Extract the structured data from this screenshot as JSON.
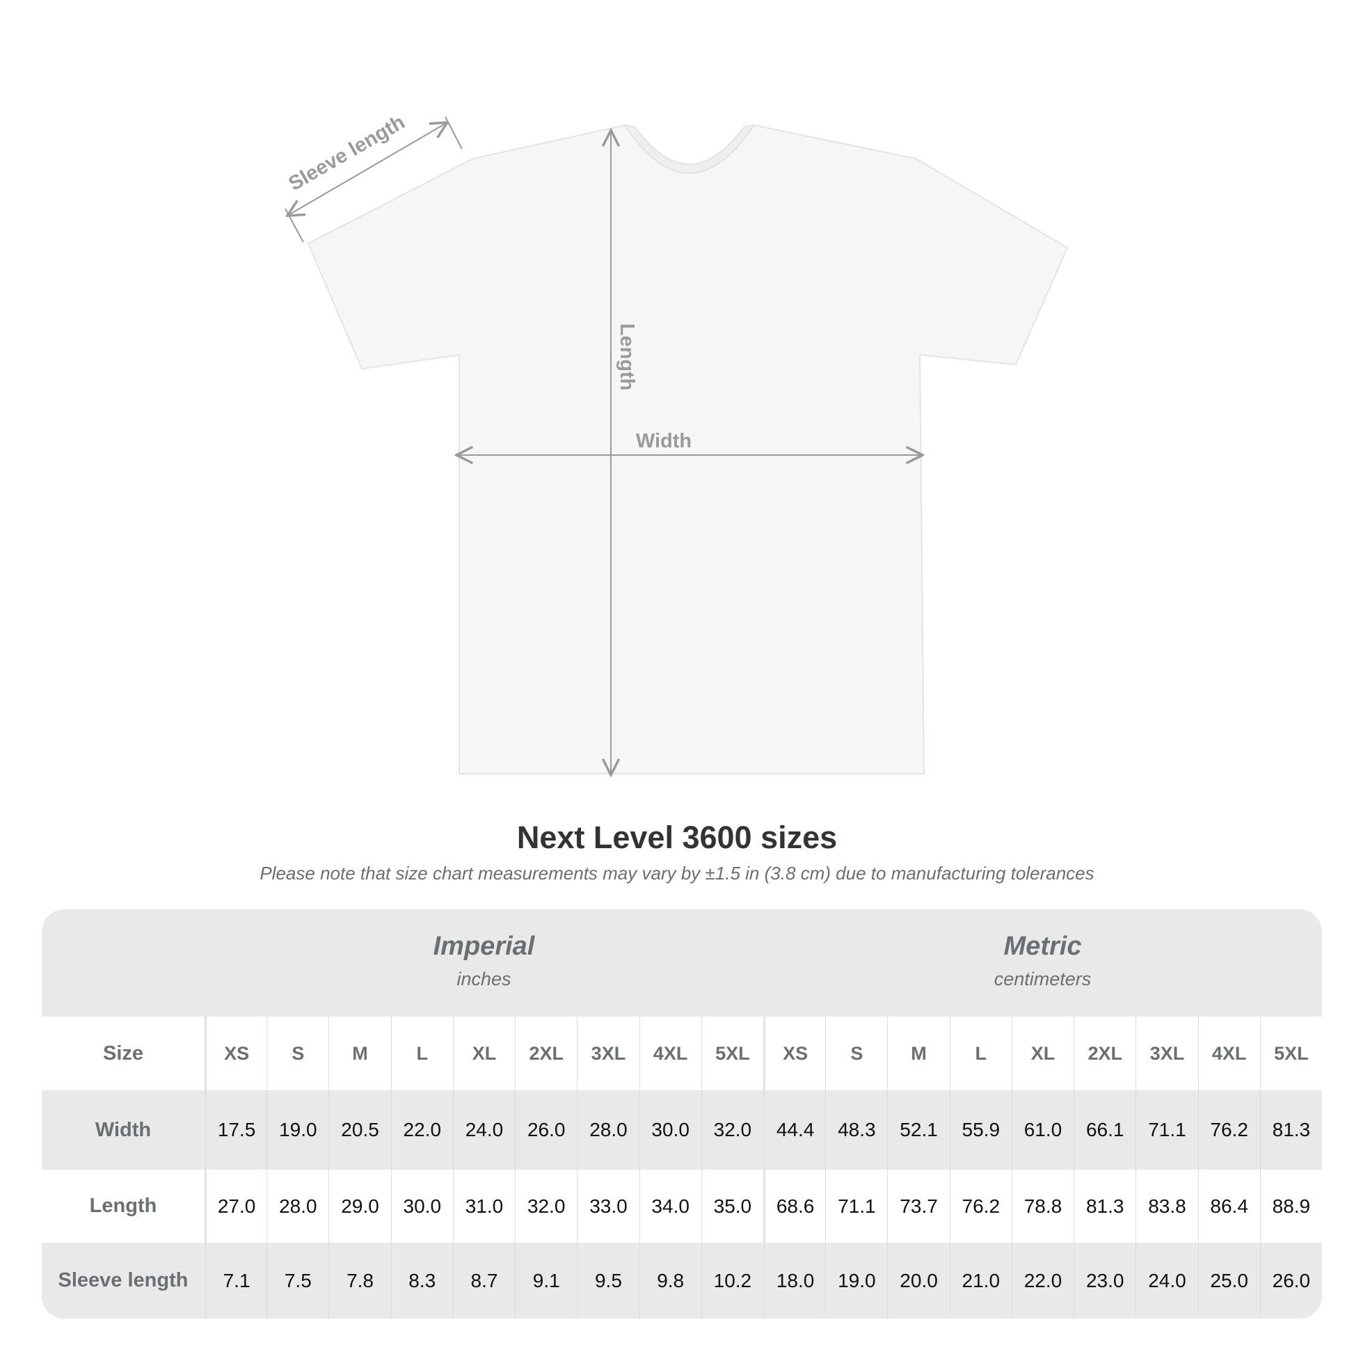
{
  "diagram": {
    "labels": {
      "sleeve": "Sleeve length",
      "length": "Length",
      "width": "Width"
    }
  },
  "title": "Next Level 3600 sizes",
  "subtitle": "Please note that size chart measurements may vary by ±1.5 in (3.8 cm) due to manufacturing tolerances",
  "table": {
    "imperial": {
      "name": "Imperial",
      "unit": "inches"
    },
    "metric": {
      "name": "Metric",
      "unit": "centimeters"
    },
    "size_label": "Size",
    "sizes": [
      "XS",
      "S",
      "M",
      "L",
      "XL",
      "2XL",
      "3XL",
      "4XL",
      "5XL"
    ],
    "rows": [
      {
        "label": "Width",
        "imperial": [
          "17.5",
          "19.0",
          "20.5",
          "22.0",
          "24.0",
          "26.0",
          "28.0",
          "30.0",
          "32.0"
        ],
        "metric": [
          "44.4",
          "48.3",
          "52.1",
          "55.9",
          "61.0",
          "66.1",
          "71.1",
          "76.2",
          "81.3"
        ]
      },
      {
        "label": "Length",
        "imperial": [
          "27.0",
          "28.0",
          "29.0",
          "30.0",
          "31.0",
          "32.0",
          "33.0",
          "34.0",
          "35.0"
        ],
        "metric": [
          "68.6",
          "71.1",
          "73.7",
          "76.2",
          "78.8",
          "81.3",
          "83.8",
          "86.4",
          "88.9"
        ]
      },
      {
        "label": "Sleeve length",
        "imperial": [
          "7.1",
          "7.5",
          "7.8",
          "8.3",
          "8.7",
          "9.1",
          "9.5",
          "9.8",
          "10.2"
        ],
        "metric": [
          "18.0",
          "19.0",
          "20.0",
          "21.0",
          "22.0",
          "23.0",
          "24.0",
          "25.0",
          "26.0"
        ]
      }
    ]
  },
  "colors": {
    "table_bg": "#e9e9e9",
    "header_text": "#6a7070",
    "guide_lines": "#9a9a9a"
  }
}
